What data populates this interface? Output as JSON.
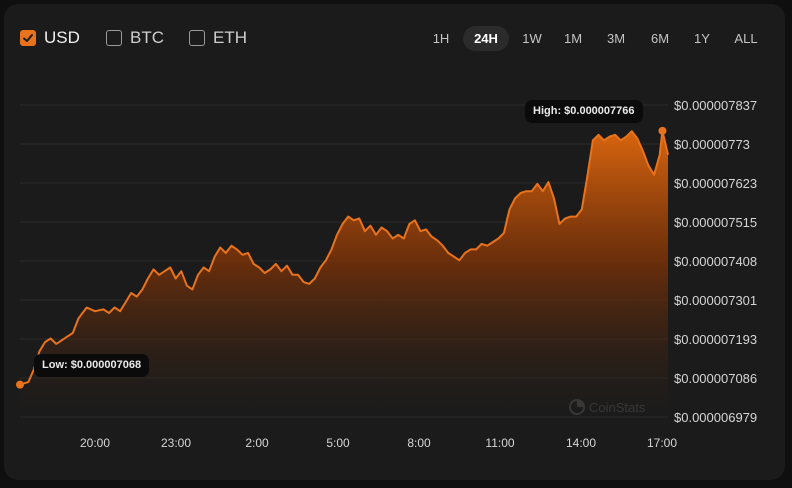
{
  "currencies": [
    {
      "label": "USD",
      "checked": true
    },
    {
      "label": "BTC",
      "checked": false
    },
    {
      "label": "ETH",
      "checked": false
    }
  ],
  "timeframes": [
    "1H",
    "24H",
    "1W",
    "1M",
    "3M",
    "6M",
    "1Y",
    "ALL"
  ],
  "active_timeframe": "24H",
  "accent_color": "#e8731c",
  "tooltips": {
    "high": "High: $0.000007766",
    "low": "Low: $0.000007068"
  },
  "watermark": "CoinStats",
  "chart_data": {
    "type": "area",
    "x_tick_labels": [
      "20:00",
      "23:00",
      "2:00",
      "5:00",
      "8:00",
      "11:00",
      "14:00",
      "17:00"
    ],
    "y_tick_labels": [
      "$0.000007837",
      "$0.00000773",
      "$0.000007623",
      "$0.000007515",
      "$0.000007408",
      "$0.000007301",
      "$0.000007193",
      "$0.000007086",
      "$0.000006979"
    ],
    "ylim": [
      6.979e-06,
      7.837e-06
    ],
    "x_hours_start": 17.9,
    "x_hours_end": 41.2,
    "high": 7.766e-06,
    "low": 7.068e-06,
    "series": [
      {
        "x_hours": [
          17.9,
          18.2,
          18.4,
          18.6,
          18.8,
          19.0,
          19.2,
          19.4,
          19.6,
          19.8,
          20.0,
          20.3,
          20.6,
          20.9,
          21.1,
          21.3,
          21.5,
          21.7,
          21.9,
          22.1,
          22.3,
          22.5,
          22.7,
          22.9,
          23.1,
          23.3,
          23.5,
          23.7,
          23.9,
          24.1,
          24.3,
          24.5,
          24.7,
          24.9,
          25.1,
          25.3,
          25.5,
          25.7,
          25.9,
          26.1,
          26.3,
          26.5,
          26.7,
          26.9,
          27.1,
          27.3,
          27.5,
          27.7,
          27.9,
          28.1,
          28.3,
          28.5,
          28.7,
          28.9,
          29.1,
          29.3,
          29.5,
          29.7,
          29.9,
          30.1,
          30.3,
          30.5,
          30.7,
          30.9,
          31.1,
          31.3,
          31.5,
          31.7,
          31.9,
          32.1,
          32.3,
          32.5,
          32.7,
          32.9,
          33.1,
          33.3,
          33.5,
          33.7,
          33.9,
          34.1,
          34.3,
          34.5,
          34.7,
          34.9,
          35.1,
          35.3,
          35.5,
          35.7,
          35.9,
          36.1,
          36.3,
          36.5,
          36.7,
          36.9,
          37.1,
          37.3,
          37.5,
          37.7,
          37.9,
          38.1,
          38.3,
          38.5,
          38.7,
          38.9,
          39.1,
          39.3,
          39.5,
          39.7,
          39.9,
          40.1,
          40.3,
          40.5,
          40.7,
          40.9,
          41.0,
          41.2
        ],
        "values": [
          7.068e-06,
          7.075e-06,
          7.11e-06,
          7.16e-06,
          7.185e-06,
          7.195e-06,
          7.18e-06,
          7.19e-06,
          7.2e-06,
          7.21e-06,
          7.25e-06,
          7.28e-06,
          7.27e-06,
          7.275e-06,
          7.265e-06,
          7.28e-06,
          7.27e-06,
          7.295e-06,
          7.32e-06,
          7.31e-06,
          7.33e-06,
          7.36e-06,
          7.385e-06,
          7.37e-06,
          7.38e-06,
          7.39e-06,
          7.36e-06,
          7.38e-06,
          7.34e-06,
          7.33e-06,
          7.37e-06,
          7.39e-06,
          7.38e-06,
          7.42e-06,
          7.445e-06,
          7.43e-06,
          7.45e-06,
          7.44e-06,
          7.425e-06,
          7.43e-06,
          7.4e-06,
          7.39e-06,
          7.375e-06,
          7.385e-06,
          7.4e-06,
          7.38e-06,
          7.395e-06,
          7.37e-06,
          7.37e-06,
          7.35e-06,
          7.345e-06,
          7.36e-06,
          7.39e-06,
          7.41e-06,
          7.44e-06,
          7.48e-06,
          7.51e-06,
          7.53e-06,
          7.52e-06,
          7.525e-06,
          7.49e-06,
          7.505e-06,
          7.48e-06,
          7.5e-06,
          7.49e-06,
          7.47e-06,
          7.48e-06,
          7.47e-06,
          7.51e-06,
          7.52e-06,
          7.49e-06,
          7.495e-06,
          7.475e-06,
          7.465e-06,
          7.45e-06,
          7.43e-06,
          7.42e-06,
          7.41e-06,
          7.43e-06,
          7.44e-06,
          7.44e-06,
          7.455e-06,
          7.45e-06,
          7.46e-06,
          7.47e-06,
          7.485e-06,
          7.55e-06,
          7.58e-06,
          7.595e-06,
          7.6e-06,
          7.6e-06,
          7.62e-06,
          7.6e-06,
          7.625e-06,
          7.58e-06,
          7.51e-06,
          7.525e-06,
          7.53e-06,
          7.53e-06,
          7.55e-06,
          7.64e-06,
          7.74e-06,
          7.755e-06,
          7.74e-06,
          7.75e-06,
          7.755e-06,
          7.74e-06,
          7.75e-06,
          7.765e-06,
          7.745e-06,
          7.71e-06,
          7.67e-06,
          7.645e-06,
          7.7e-06,
          7.766e-06,
          7.7e-06
        ]
      }
    ]
  }
}
